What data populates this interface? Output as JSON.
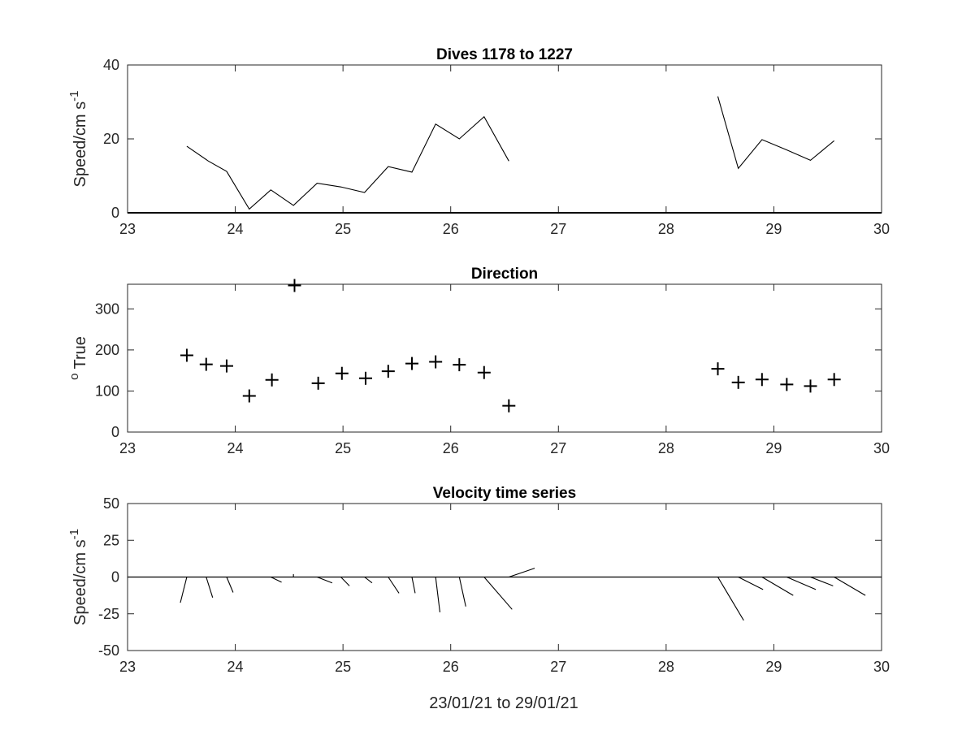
{
  "figure": {
    "xlabel": "23/01/21 to 29/01/21"
  },
  "chart_data": [
    {
      "type": "line",
      "title": "Dives 1178 to 1227",
      "ylabel": "Speed/cm s",
      "ylabel_sup": "-1",
      "xlim": [
        23,
        30
      ],
      "ylim": [
        0,
        40
      ],
      "xticks": [
        23,
        24,
        25,
        26,
        27,
        28,
        29,
        30
      ],
      "yticks": [
        0,
        20,
        40
      ],
      "segments": [
        [
          [
            23.55,
            18
          ],
          [
            23.75,
            14
          ],
          [
            23.92,
            11.2
          ],
          [
            24.13,
            1
          ],
          [
            24.33,
            6.2
          ],
          [
            24.54,
            2
          ],
          [
            24.76,
            8
          ],
          [
            24.98,
            7
          ],
          [
            25.2,
            5.5
          ],
          [
            25.42,
            12.5
          ],
          [
            25.64,
            11
          ],
          [
            25.86,
            24
          ],
          [
            26.08,
            20
          ],
          [
            26.31,
            26
          ],
          [
            26.54,
            14
          ]
        ],
        [
          [
            28.48,
            31.5
          ],
          [
            28.67,
            12
          ],
          [
            28.89,
            19.8
          ],
          [
            29.12,
            17
          ],
          [
            29.34,
            14.2
          ],
          [
            29.56,
            19.5
          ]
        ]
      ],
      "baseline": 0,
      "colors": {
        "line": "#000000"
      }
    },
    {
      "type": "scatter",
      "title": "Direction",
      "ylabel": "True",
      "ylabel_prefix": "o",
      "xlim": [
        23,
        30
      ],
      "ylim": [
        0,
        360
      ],
      "xticks": [
        23,
        24,
        25,
        26,
        27,
        28,
        29,
        30
      ],
      "yticks": [
        0,
        100,
        200,
        300
      ],
      "marker": "+",
      "points": [
        [
          23.55,
          187
        ],
        [
          23.73,
          165
        ],
        [
          23.92,
          161
        ],
        [
          24.13,
          88
        ],
        [
          24.34,
          127
        ],
        [
          24.55,
          357
        ],
        [
          24.77,
          119
        ],
        [
          24.99,
          143
        ],
        [
          25.21,
          131
        ],
        [
          25.42,
          148
        ],
        [
          25.64,
          167
        ],
        [
          25.86,
          171
        ],
        [
          26.08,
          164
        ],
        [
          26.31,
          145
        ],
        [
          26.54,
          64
        ],
        [
          28.48,
          154
        ],
        [
          28.67,
          121
        ],
        [
          28.89,
          128
        ],
        [
          29.12,
          116
        ],
        [
          29.34,
          112
        ],
        [
          29.56,
          128
        ]
      ],
      "colors": {
        "marker": "#000000"
      }
    },
    {
      "type": "quiver",
      "title": "Velocity time series",
      "ylabel": "Speed/cm s",
      "ylabel_sup": "-1",
      "xlim": [
        23,
        30
      ],
      "ylim": [
        -50,
        50
      ],
      "xticks": [
        23,
        24,
        25,
        26,
        27,
        28,
        29,
        30
      ],
      "yticks": [
        -50,
        -25,
        0,
        25,
        50
      ],
      "vectors": [
        {
          "x": 23.55,
          "u": -0.06,
          "v": -17.5
        },
        {
          "x": 23.73,
          "u": 0.06,
          "v": -14
        },
        {
          "x": 23.92,
          "u": 0.06,
          "v": -10.5
        },
        {
          "x": 24.33,
          "u": 0.1,
          "v": -3.5
        },
        {
          "x": 24.54,
          "u": 0,
          "v": 2
        },
        {
          "x": 24.76,
          "u": 0.14,
          "v": -4
        },
        {
          "x": 24.98,
          "u": 0.08,
          "v": -6
        },
        {
          "x": 25.2,
          "u": 0.07,
          "v": -4
        },
        {
          "x": 25.42,
          "u": 0.1,
          "v": -11
        },
        {
          "x": 25.64,
          "u": 0.03,
          "v": -11
        },
        {
          "x": 25.86,
          "u": 0.04,
          "v": -24
        },
        {
          "x": 26.08,
          "u": 0.06,
          "v": -20
        },
        {
          "x": 26.31,
          "u": 0.26,
          "v": -22
        },
        {
          "x": 26.54,
          "u": 0.24,
          "v": 6
        },
        {
          "x": 28.48,
          "u": 0.24,
          "v": -29.5
        },
        {
          "x": 28.67,
          "u": 0.23,
          "v": -8.5
        },
        {
          "x": 28.89,
          "u": 0.29,
          "v": -12.5
        },
        {
          "x": 29.12,
          "u": 0.27,
          "v": -8.5
        },
        {
          "x": 29.34,
          "u": 0.21,
          "v": -6
        },
        {
          "x": 29.56,
          "u": 0.29,
          "v": -12.5
        }
      ],
      "baseline": 0,
      "colors": {
        "line": "#000000"
      }
    }
  ]
}
